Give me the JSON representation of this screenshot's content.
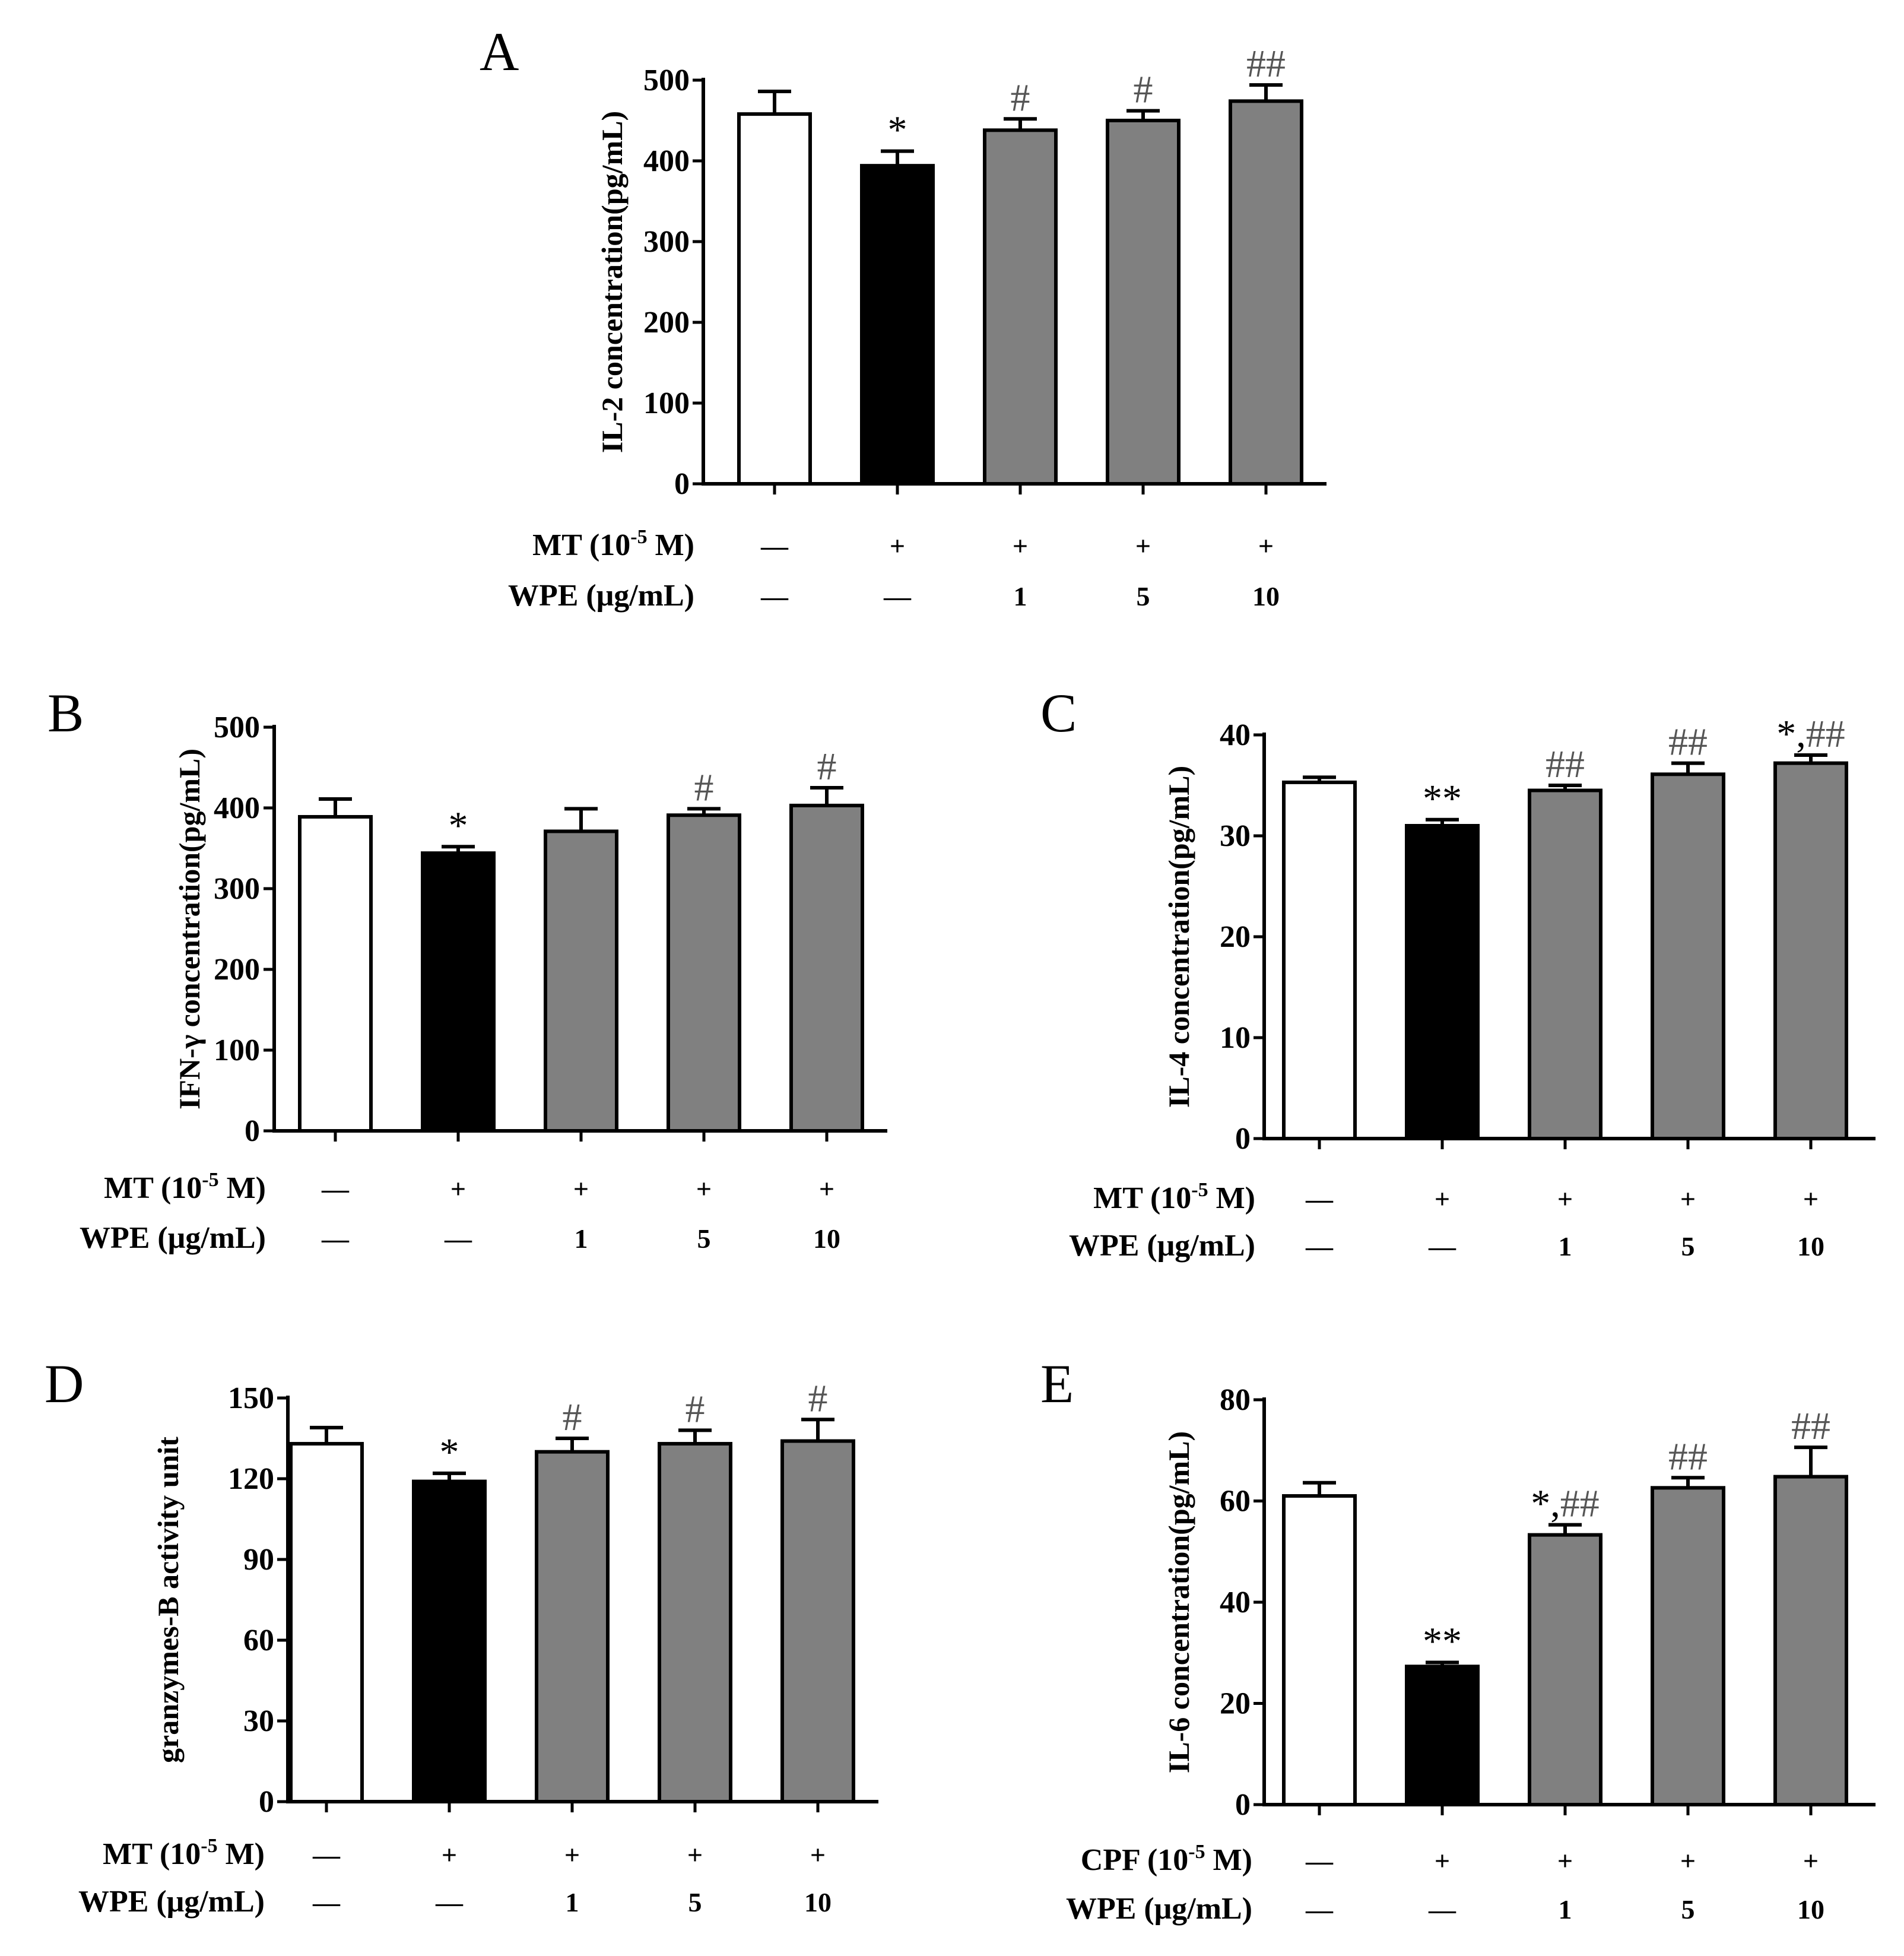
{
  "colors": {
    "control": "#ffffff",
    "model": "#000000",
    "treated": "#808080",
    "stroke": "#000000",
    "hash": "#555555"
  },
  "chart_data": [
    {
      "panel": "A",
      "type": "bar",
      "ylabel": "IL-2 concentration(pg/mL)",
      "ylim": [
        0,
        500
      ],
      "yticks": [
        0,
        100,
        200,
        300,
        400,
        500
      ],
      "values": [
        458,
        394,
        438,
        450,
        474
      ],
      "errors": [
        28,
        18,
        14,
        12,
        20
      ],
      "fills": [
        "control",
        "model",
        "treated",
        "treated",
        "treated"
      ],
      "sig": [
        "",
        "*",
        "#",
        "#",
        "##"
      ],
      "treatments": [
        {
          "label": "MT  (10",
          "sup": "-5",
          "label_end": " M)",
          "cells": [
            "—",
            "+",
            "+",
            "+",
            "+"
          ]
        },
        {
          "label": "WPE (μg/mL)",
          "sup": "",
          "label_end": "",
          "cells": [
            "—",
            "—",
            "1",
            "5",
            "10"
          ]
        }
      ]
    },
    {
      "panel": "B",
      "type": "bar",
      "ylabel": "IFN-γ concentration(pg/mL)",
      "ylim": [
        0,
        500
      ],
      "yticks": [
        0,
        100,
        200,
        300,
        400,
        500
      ],
      "values": [
        389,
        344,
        371,
        391,
        403
      ],
      "errors": [
        22,
        8,
        28,
        8,
        22
      ],
      "fills": [
        "control",
        "model",
        "treated",
        "treated",
        "treated"
      ],
      "sig": [
        "",
        "*",
        "",
        "#",
        "#"
      ],
      "treatments": [
        {
          "label": "MT  (10",
          "sup": "-5",
          "label_end": " M)",
          "cells": [
            "—",
            "+",
            "+",
            "+",
            "+"
          ]
        },
        {
          "label": "WPE (μg/mL)",
          "sup": "",
          "label_end": "",
          "cells": [
            "—",
            "—",
            "1",
            "5",
            "10"
          ]
        }
      ]
    },
    {
      "panel": "C",
      "type": "bar",
      "ylabel": "IL-4 concentration(pg/mL)",
      "ylim": [
        0,
        40
      ],
      "yticks": [
        0,
        10,
        20,
        30,
        40
      ],
      "values": [
        35.3,
        31.0,
        34.5,
        36.1,
        37.2
      ],
      "errors": [
        0.5,
        0.6,
        0.5,
        1.1,
        0.8
      ],
      "fills": [
        "control",
        "model",
        "treated",
        "treated",
        "treated"
      ],
      "sig": [
        "",
        "**",
        "##",
        "##",
        "*,##"
      ],
      "treatments": [
        {
          "label": "MT  (10",
          "sup": "-5",
          "label_end": " M)",
          "cells": [
            "—",
            "+",
            "+",
            "+",
            "+"
          ]
        },
        {
          "label": "WPE (μg/mL)",
          "sup": "",
          "label_end": "",
          "cells": [
            "—",
            "—",
            "1",
            "5",
            "10"
          ]
        }
      ]
    },
    {
      "panel": "D",
      "type": "bar",
      "ylabel": "granzymes-B activity unit",
      "ylim": [
        0,
        150
      ],
      "yticks": [
        0,
        30,
        60,
        90,
        120,
        150
      ],
      "values": [
        133,
        119,
        130,
        133,
        134
      ],
      "errors": [
        6,
        3,
        5,
        5,
        8
      ],
      "fills": [
        "control",
        "model",
        "treated",
        "treated",
        "treated"
      ],
      "sig": [
        "",
        "*",
        "#",
        "#",
        "#"
      ],
      "treatments": [
        {
          "label": "MT  (10",
          "sup": "-5",
          "label_end": " M)",
          "cells": [
            "—",
            "+",
            "+",
            "+",
            "+"
          ]
        },
        {
          "label": "WPE (μg/mL)",
          "sup": "",
          "label_end": "",
          "cells": [
            "—",
            "—",
            "1",
            "5",
            "10"
          ]
        }
      ]
    },
    {
      "panel": "E",
      "type": "bar",
      "ylabel": "IL-6 concentration(pg/mL)",
      "ylim": [
        0,
        80
      ],
      "yticks": [
        0,
        20,
        40,
        60,
        80
      ],
      "values": [
        61,
        27.3,
        53.3,
        62.6,
        64.8
      ],
      "errors": [
        2.6,
        0.8,
        2.0,
        2.0,
        5.8
      ],
      "fills": [
        "control",
        "model",
        "treated",
        "treated",
        "treated"
      ],
      "sig": [
        "",
        "**",
        "*,##",
        "##",
        "##"
      ],
      "treatments": [
        {
          "label": "CPF  (10",
          "sup": "-5",
          "label_end": " M)",
          "cells": [
            "—",
            "+",
            "+",
            "+",
            "+"
          ]
        },
        {
          "label": "WPE (μg/mL)",
          "sup": "",
          "label_end": "",
          "cells": [
            "—",
            "—",
            "1",
            "5",
            "10"
          ]
        }
      ]
    }
  ]
}
